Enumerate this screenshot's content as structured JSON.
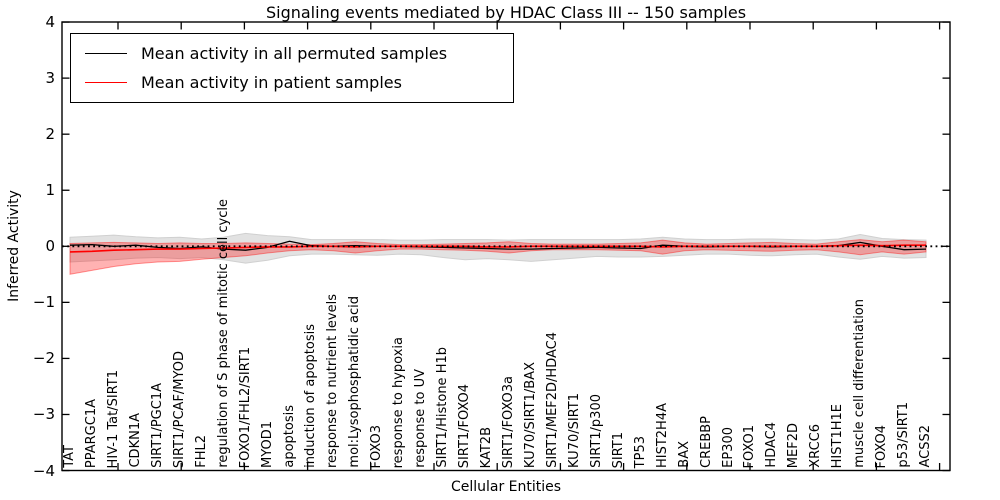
{
  "title": "Signaling events mediated by HDAC Class III -- 150 samples",
  "axes": {
    "xlabel": "Cellular Entities",
    "ylabel": "Inferred Activity",
    "yticks": [
      "4",
      "3",
      "2",
      "1",
      "0",
      "−1",
      "−2",
      "−3",
      "−4"
    ],
    "ytick_values": [
      4,
      3,
      2,
      1,
      0,
      -1,
      -2,
      -3,
      -4
    ]
  },
  "legend": {
    "items": [
      {
        "label": "Mean activity in all permuted samples",
        "color": "#000000"
      },
      {
        "label": "Mean activity in patient samples",
        "color": "#ff0000"
      }
    ]
  },
  "chart_data": {
    "type": "line",
    "title": "Signaling events mediated by HDAC Class III -- 150 samples",
    "xlabel": "Cellular Entities",
    "ylabel": "Inferred Activity",
    "ylim": [
      -4,
      4
    ],
    "grid": false,
    "legend_position": "upper left",
    "zero_line": {
      "y": 0,
      "style": "dotted",
      "color": "#000000"
    },
    "categories": [
      "TAT",
      "PPARGC1A",
      "HIV-1 Tat/SIRT1",
      "CDKN1A",
      "SIRT1/PGC1A",
      "SIRT1/PCAF/MYOD",
      "FHL2",
      "regulation of S phase of mitotic cell cycle",
      "FOXO1/FHL2/SIRT1",
      "MYOD1",
      "apoptosis",
      "induction of apoptosis",
      "response to nutrient levels",
      "mol:Lysophosphatidic acid",
      "FOXO3",
      "response to hypoxia",
      "response to UV",
      "SIRT1/Histone H1b",
      "SIRT1/FOXO4",
      "KAT2B",
      "SIRT1/FOXO3a",
      "KU70/SIRT1/BAX",
      "SIRT1/MEF2D/HDAC4",
      "KU70/SIRT1",
      "SIRT1/p300",
      "SIRT1",
      "TP53",
      "HIST2H4A",
      "BAX",
      "CREBBP",
      "EP300",
      "FOXO1",
      "HDAC4",
      "MEF2D",
      "XRCC6",
      "HIST1H1E",
      "muscle cell differentiation",
      "FOXO4",
      "p53/SIRT1",
      "ACSS2"
    ],
    "series": [
      {
        "name": "Mean activity in all permuted samples",
        "color": "#000000",
        "band_fill": "#e2e2e2",
        "band_edge": "#d0d0d0",
        "values": [
          0.02,
          0.03,
          0,
          0.02,
          -0.02,
          -0.04,
          -0.01,
          -0.05,
          -0.07,
          -0.02,
          0.09,
          0.01,
          0,
          0.01,
          0,
          0,
          -0.01,
          -0.02,
          -0.03,
          -0.04,
          -0.05,
          -0.05,
          -0.04,
          -0.03,
          -0.02,
          -0.03,
          -0.04,
          0.02,
          0,
          -0.01,
          0,
          0,
          -0.01,
          0,
          0,
          0.01,
          0.07,
          0,
          -0.06,
          -0.05
        ],
        "band_upper": [
          0.16,
          0.18,
          0.2,
          0.17,
          0.15,
          0.16,
          0.13,
          0.16,
          0.23,
          0.19,
          0.17,
          0.12,
          0.12,
          0.12,
          0.12,
          0.11,
          0.11,
          0.12,
          0.12,
          0.12,
          0.11,
          0.12,
          0.12,
          0.12,
          0.12,
          0.12,
          0.13,
          0.16,
          0.13,
          0.12,
          0.12,
          0.13,
          0.13,
          0.12,
          0.11,
          0.13,
          0.21,
          0.14,
          0.12,
          0.11
        ],
        "band_lower": [
          -0.28,
          -0.26,
          -0.24,
          -0.21,
          -0.2,
          -0.22,
          -0.2,
          -0.24,
          -0.3,
          -0.25,
          -0.17,
          -0.14,
          -0.14,
          -0.15,
          -0.16,
          -0.14,
          -0.15,
          -0.2,
          -0.24,
          -0.22,
          -0.24,
          -0.27,
          -0.24,
          -0.21,
          -0.18,
          -0.19,
          -0.19,
          -0.18,
          -0.16,
          -0.14,
          -0.14,
          -0.16,
          -0.17,
          -0.15,
          -0.14,
          -0.19,
          -0.23,
          -0.18,
          -0.21,
          -0.2
        ]
      },
      {
        "name": "Mean activity in patient samples",
        "color": "#ff0000",
        "band_fill": "rgba(255,0,0,0.30)",
        "band_edge": "rgba(255,0,0,0.40)",
        "values": [
          -0.1,
          -0.09,
          -0.07,
          -0.06,
          -0.05,
          -0.05,
          -0.04,
          -0.03,
          -0.02,
          -0.01,
          -0.01,
          0,
          0,
          -0.01,
          0,
          0,
          0,
          0,
          0,
          -0.01,
          -0.01,
          0,
          0,
          0,
          0,
          0,
          0,
          -0.01,
          0,
          0,
          0,
          0,
          0,
          0,
          0,
          0.01,
          0.02,
          0.01,
          0.02,
          0.02
        ],
        "band_upper": [
          0.05,
          0.06,
          0.07,
          0.06,
          0.05,
          0.06,
          0.05,
          0.05,
          0.06,
          0.05,
          0.04,
          0.03,
          0.05,
          0.08,
          0.05,
          0.03,
          0.03,
          0.04,
          0.05,
          0.06,
          0.08,
          0.05,
          0.04,
          0.04,
          0.04,
          0.05,
          0.06,
          0.11,
          0.06,
          0.04,
          0.05,
          0.06,
          0.07,
          0.05,
          0.04,
          0.08,
          0.12,
          0.08,
          0.11,
          0.08
        ],
        "band_lower": [
          -0.5,
          -0.43,
          -0.36,
          -0.31,
          -0.28,
          -0.27,
          -0.23,
          -0.2,
          -0.17,
          -0.12,
          -0.08,
          -0.06,
          -0.08,
          -0.12,
          -0.08,
          -0.05,
          -0.05,
          -0.06,
          -0.07,
          -0.09,
          -0.12,
          -0.08,
          -0.06,
          -0.06,
          -0.06,
          -0.07,
          -0.08,
          -0.14,
          -0.08,
          -0.06,
          -0.07,
          -0.08,
          -0.09,
          -0.07,
          -0.06,
          -0.1,
          -0.15,
          -0.1,
          -0.14,
          -0.1
        ]
      }
    ]
  }
}
